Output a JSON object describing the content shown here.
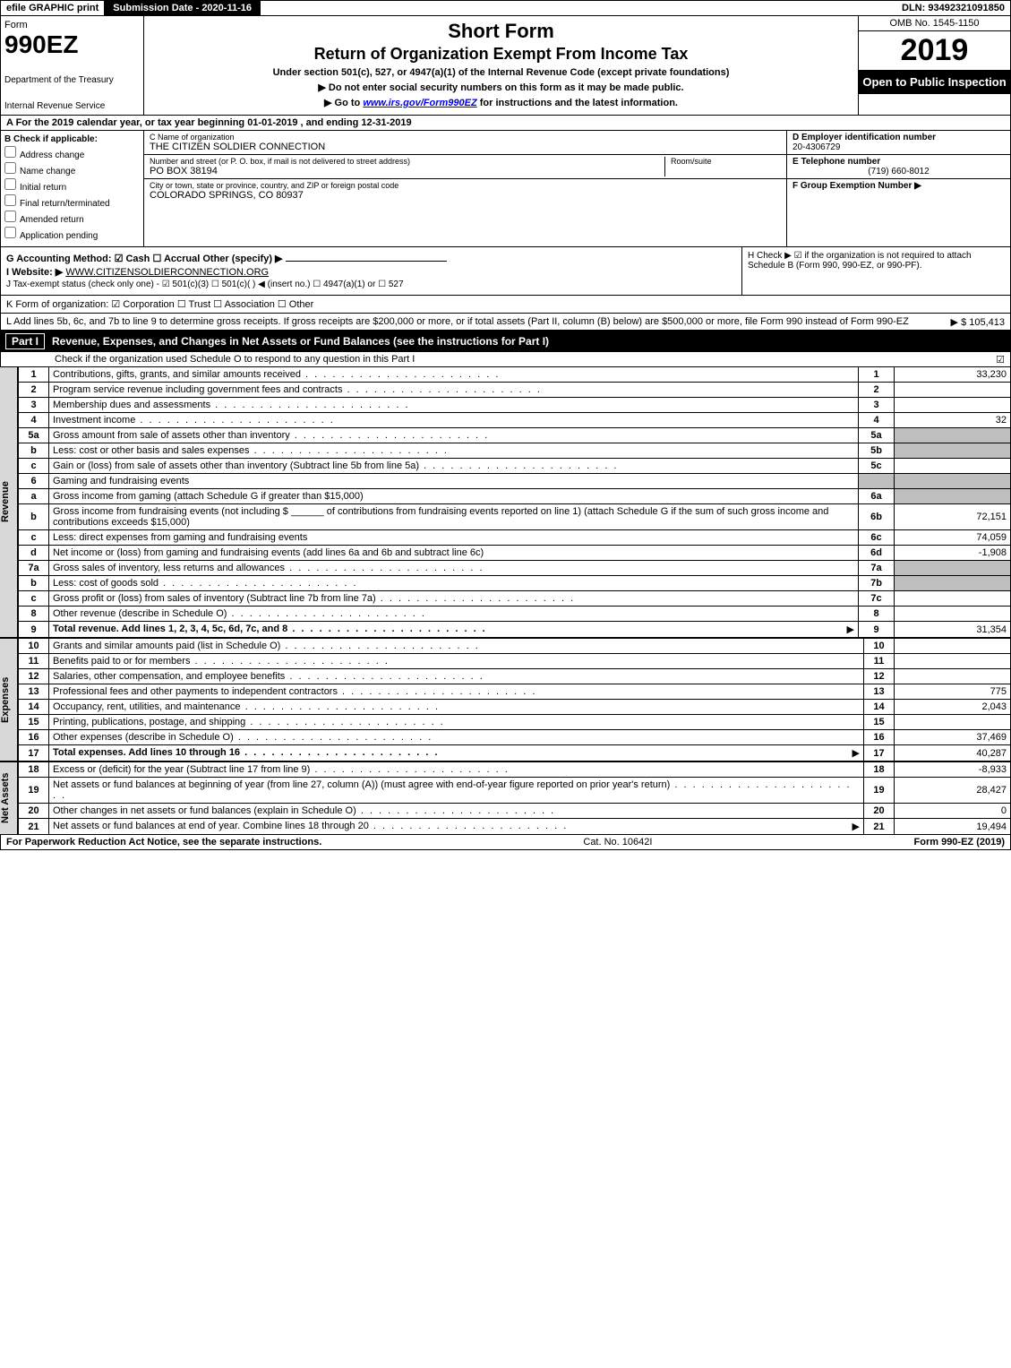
{
  "top_bar": {
    "efile": "efile GRAPHIC print",
    "submission": "Submission Date - 2020-11-16",
    "dln": "DLN: 93492321091850"
  },
  "header": {
    "form_word": "Form",
    "form_number": "990EZ",
    "dept": "Department of the Treasury",
    "irs": "Internal Revenue Service",
    "title1": "Short Form",
    "title2": "Return of Organization Exempt From Income Tax",
    "sub1": "Under section 501(c), 527, or 4947(a)(1) of the Internal Revenue Code (except private foundations)",
    "sub2": "▶ Do not enter social security numbers on this form as it may be made public.",
    "sub3_pre": "▶ Go to ",
    "sub3_link": "www.irs.gov/Form990EZ",
    "sub3_post": " for instructions and the latest information.",
    "omb": "OMB No. 1545-1150",
    "year": "2019",
    "open": "Open to Public Inspection"
  },
  "row_a": "A For the 2019 calendar year, or tax year beginning 01-01-2019 , and ending 12-31-2019",
  "b_checks": {
    "label": "B Check if applicable:",
    "items": [
      "Address change",
      "Name change",
      "Initial return",
      "Final return/terminated",
      "Amended return",
      "Application pending"
    ]
  },
  "c_block": {
    "name_lab": "C Name of organization",
    "name_val": "THE CITIZEN SOLDIER CONNECTION",
    "addr_lab": "Number and street (or P. O. box, if mail is not delivered to street address)",
    "addr_val": "PO BOX 38194",
    "room_lab": "Room/suite",
    "city_lab": "City or town, state or province, country, and ZIP or foreign postal code",
    "city_val": "COLORADO SPRINGS, CO  80937"
  },
  "d_block": {
    "d_lab": "D Employer identification number",
    "d_val": "20-4306729",
    "e_lab": "E Telephone number",
    "e_val": "(719) 660-8012",
    "f_lab": "F Group Exemption Number  ▶"
  },
  "g_block": {
    "acct": "G Accounting Method:  ☑ Cash  ☐ Accrual   Other (specify) ▶",
    "website_lab": "I Website: ▶",
    "website_val": "WWW.CITIZENSOLDIERCONNECTION.ORG",
    "j": "J Tax-exempt status (check only one) - ☑ 501(c)(3) ☐ 501(c)(  ) ◀ (insert no.) ☐ 4947(a)(1) or ☐ 527"
  },
  "h_block": "H   Check ▶ ☑ if the organization is not required to attach Schedule B (Form 990, 990-EZ, or 990-PF).",
  "k_row": "K Form of organization:   ☑ Corporation  ☐ Trust  ☐ Association  ☐ Other",
  "l_row": {
    "text": "L Add lines 5b, 6c, and 7b to line 9 to determine gross receipts. If gross receipts are $200,000 or more, or if total assets (Part II, column (B) below) are $500,000 or more, file Form 990 instead of Form 990-EZ",
    "amount": "▶ $ 105,413"
  },
  "part1": {
    "label": "Part I",
    "title": "Revenue, Expenses, and Changes in Net Assets or Fund Balances (see the instructions for Part I)",
    "sub": "Check if the organization used Schedule O to respond to any question in this Part I",
    "checked": "☑"
  },
  "revenue_rows": [
    {
      "n": "1",
      "d": "Contributions, gifts, grants, and similar amounts received",
      "r": "1",
      "v": "33,230"
    },
    {
      "n": "2",
      "d": "Program service revenue including government fees and contracts",
      "r": "2",
      "v": ""
    },
    {
      "n": "3",
      "d": "Membership dues and assessments",
      "r": "3",
      "v": ""
    },
    {
      "n": "4",
      "d": "Investment income",
      "r": "4",
      "v": "32"
    }
  ],
  "rev_5a": {
    "n": "5a",
    "d": "Gross amount from sale of assets other than inventory",
    "sn": "5a",
    "sv": ""
  },
  "rev_5b": {
    "n": "b",
    "d": "Less: cost or other basis and sales expenses",
    "sn": "5b",
    "sv": ""
  },
  "rev_5c": {
    "n": "c",
    "d": "Gain or (loss) from sale of assets other than inventory (Subtract line 5b from line 5a)",
    "r": "5c",
    "v": ""
  },
  "rev_6": {
    "n": "6",
    "d": "Gaming and fundraising events"
  },
  "rev_6a": {
    "n": "a",
    "d": "Gross income from gaming (attach Schedule G if greater than $15,000)",
    "sn": "6a",
    "sv": ""
  },
  "rev_6b": {
    "n": "b",
    "d": "Gross income from fundraising events (not including $ ______ of contributions from fundraising events reported on line 1) (attach Schedule G if the sum of such gross income and contributions exceeds $15,000)",
    "sn": "6b",
    "sv": "72,151"
  },
  "rev_6c": {
    "n": "c",
    "d": "Less: direct expenses from gaming and fundraising events",
    "sn": "6c",
    "sv": "74,059"
  },
  "rev_6d": {
    "n": "d",
    "d": "Net income or (loss) from gaming and fundraising events (add lines 6a and 6b and subtract line 6c)",
    "r": "6d",
    "v": "-1,908"
  },
  "rev_7a": {
    "n": "7a",
    "d": "Gross sales of inventory, less returns and allowances",
    "sn": "7a",
    "sv": ""
  },
  "rev_7b": {
    "n": "b",
    "d": "Less: cost of goods sold",
    "sn": "7b",
    "sv": ""
  },
  "rev_7c": {
    "n": "c",
    "d": "Gross profit or (loss) from sales of inventory (Subtract line 7b from line 7a)",
    "r": "7c",
    "v": ""
  },
  "rev_8": {
    "n": "8",
    "d": "Other revenue (describe in Schedule O)",
    "r": "8",
    "v": ""
  },
  "rev_9": {
    "n": "9",
    "d": "Total revenue. Add lines 1, 2, 3, 4, 5c, 6d, 7c, and 8",
    "r": "9",
    "v": "31,354",
    "arrow": "▶"
  },
  "expense_rows": [
    {
      "n": "10",
      "d": "Grants and similar amounts paid (list in Schedule O)",
      "r": "10",
      "v": ""
    },
    {
      "n": "11",
      "d": "Benefits paid to or for members",
      "r": "11",
      "v": ""
    },
    {
      "n": "12",
      "d": "Salaries, other compensation, and employee benefits",
      "r": "12",
      "v": ""
    },
    {
      "n": "13",
      "d": "Professional fees and other payments to independent contractors",
      "r": "13",
      "v": "775"
    },
    {
      "n": "14",
      "d": "Occupancy, rent, utilities, and maintenance",
      "r": "14",
      "v": "2,043"
    },
    {
      "n": "15",
      "d": "Printing, publications, postage, and shipping",
      "r": "15",
      "v": ""
    },
    {
      "n": "16",
      "d": "Other expenses (describe in Schedule O)",
      "r": "16",
      "v": "37,469"
    },
    {
      "n": "17",
      "d": "Total expenses. Add lines 10 through 16",
      "r": "17",
      "v": "40,287",
      "arrow": "▶",
      "bold": true
    }
  ],
  "netassets_rows": [
    {
      "n": "18",
      "d": "Excess or (deficit) for the year (Subtract line 17 from line 9)",
      "r": "18",
      "v": "-8,933"
    },
    {
      "n": "19",
      "d": "Net assets or fund balances at beginning of year (from line 27, column (A)) (must agree with end-of-year figure reported on prior year's return)",
      "r": "19",
      "v": "28,427"
    },
    {
      "n": "20",
      "d": "Other changes in net assets or fund balances (explain in Schedule O)",
      "r": "20",
      "v": "0"
    },
    {
      "n": "21",
      "d": "Net assets or fund balances at end of year. Combine lines 18 through 20",
      "r": "21",
      "v": "19,494",
      "arrow": "▶"
    }
  ],
  "side_labels": {
    "revenue": "Revenue",
    "expenses": "Expenses",
    "netassets": "Net Assets"
  },
  "footer": {
    "left": "For Paperwork Reduction Act Notice, see the separate instructions.",
    "mid": "Cat. No. 10642I",
    "right": "Form 990-EZ (2019)"
  },
  "colors": {
    "black": "#000000",
    "white": "#ffffff",
    "grey_fill": "#bfbfbf",
    "side_grey": "#d8d8d8"
  }
}
